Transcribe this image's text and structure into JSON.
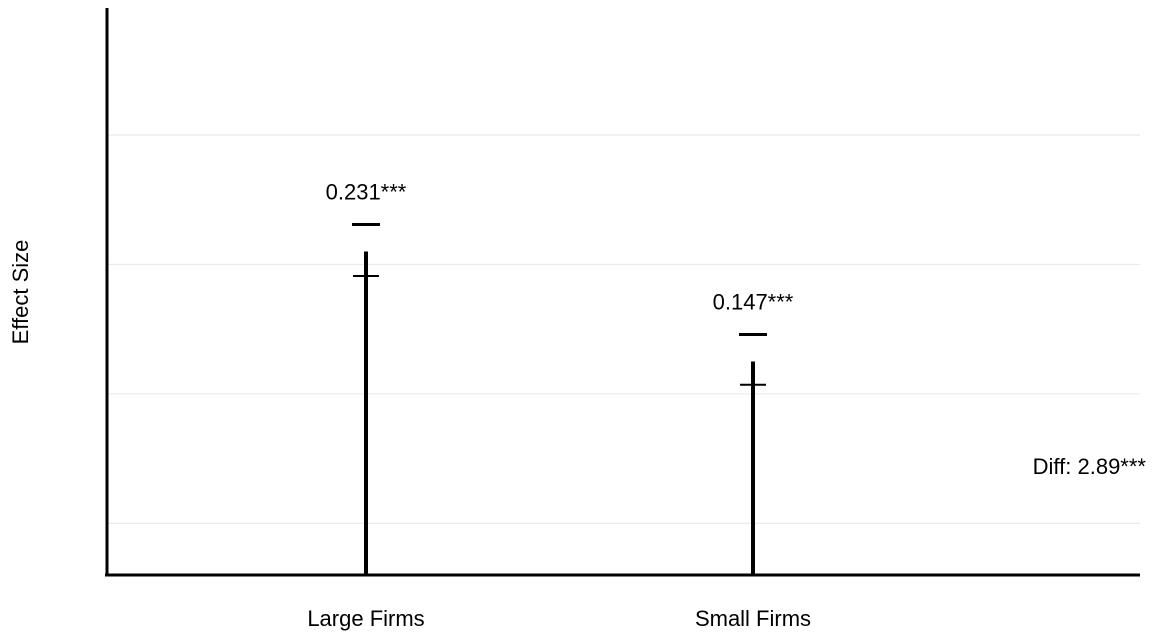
{
  "chart_data": {
    "type": "bar",
    "title": "",
    "xlabel": "",
    "ylabel": "Effect Size",
    "categories": [
      "Large Firms",
      "Small Firms"
    ],
    "values": [
      0.231,
      0.147
    ],
    "value_labels": [
      "0.231***",
      "0.147***"
    ],
    "error_upper": [
      0.25,
      0.165
    ],
    "ylim": [
      0,
      0.34
    ],
    "grid_values": [
      0.04,
      0.14,
      0.24,
      0.34
    ],
    "grid": true,
    "annotation": "Diff: 2.89***"
  }
}
